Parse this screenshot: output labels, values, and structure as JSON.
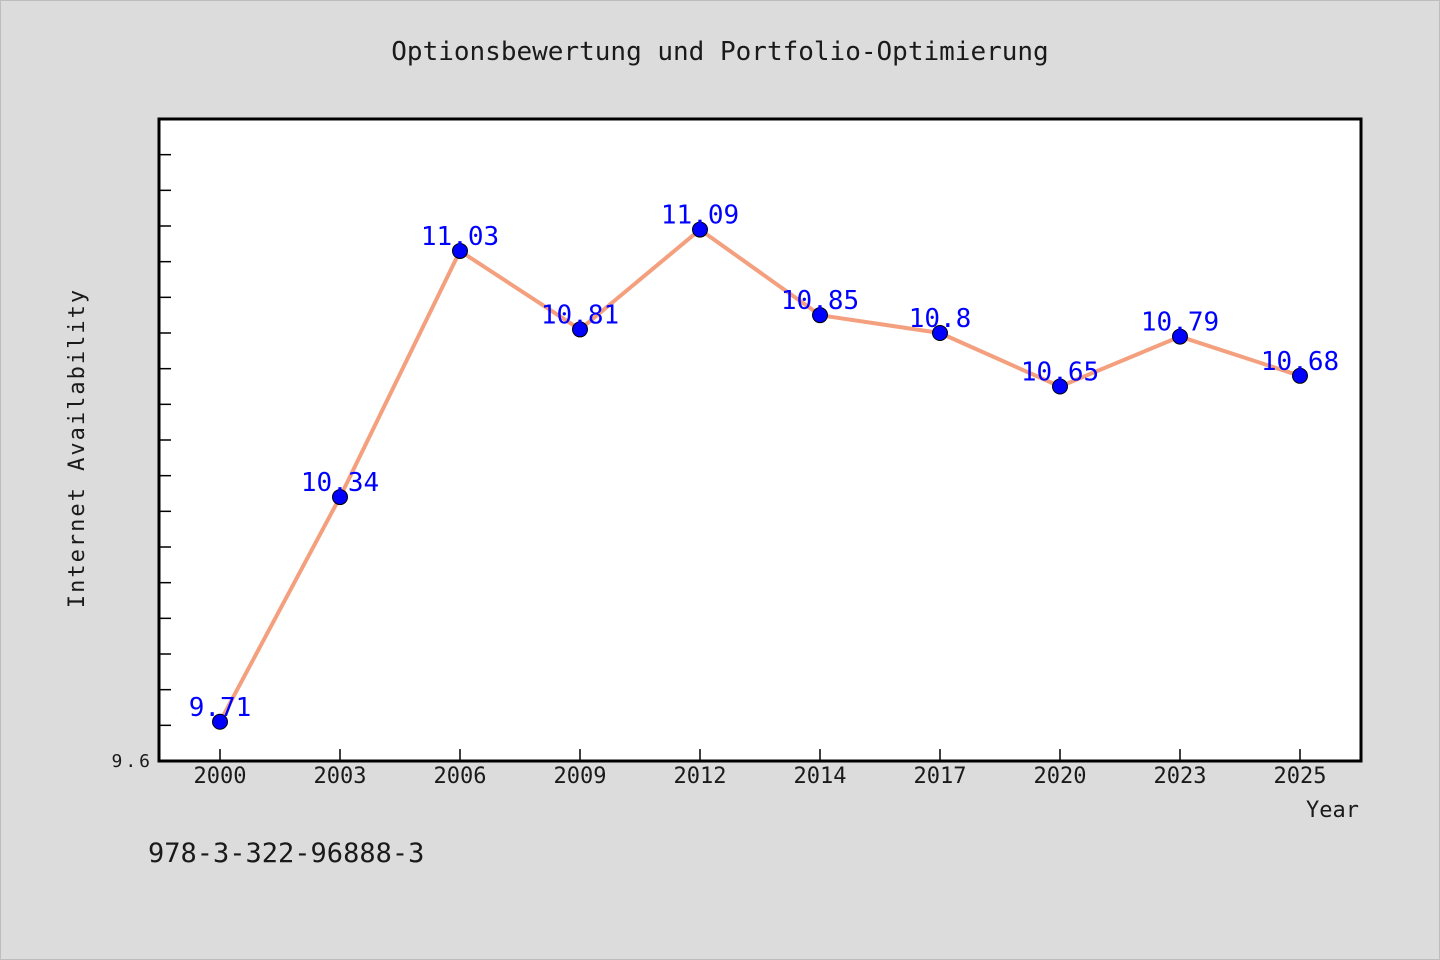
{
  "colors": {
    "figure_background": "#dcdcdc",
    "plot_background": "#ffffff",
    "line": "#f4a07f",
    "marker": "#0000ff",
    "data_label": "#0000ff",
    "axis": "#000000",
    "text": "#1a1a1a"
  },
  "footer_text": "978-3-322-96888-3",
  "chart_data": {
    "type": "line",
    "title": "Optionsbewertung und Portfolio-Optimierung",
    "xlabel": "Year",
    "ylabel": "Internet Availability",
    "categories": [
      "2000",
      "2003",
      "2006",
      "2009",
      "2012",
      "2014",
      "2017",
      "2020",
      "2023",
      "2025"
    ],
    "series": [
      {
        "values": [
          9.71,
          10.34,
          11.03,
          10.81,
          11.09,
          10.85,
          10.8,
          10.65,
          10.79,
          10.68
        ],
        "labels": [
          "9.71",
          "10.34",
          "11.03",
          "10.81",
          "11.09",
          "10.85",
          "10.8",
          "10.65",
          "10.79",
          "10.68"
        ]
      }
    ],
    "ylim": [
      9.6,
      11.4
    ],
    "ytick_labels": [
      {
        "value": 9.6,
        "label": "9.6"
      }
    ],
    "yminor_step": 0.1,
    "grid": false,
    "legend": "none"
  }
}
